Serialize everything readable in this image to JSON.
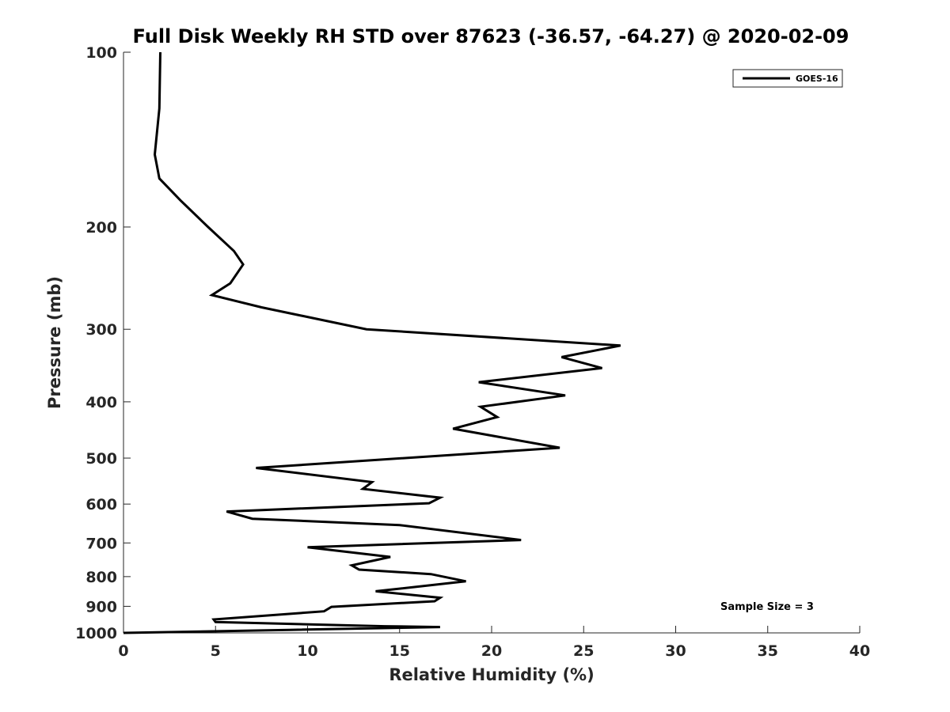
{
  "chart_data": {
    "type": "line",
    "title": "Full Disk Weekly RH STD over 87623 (-36.57, -64.27) @ 2020-02-09",
    "xlabel": "Relative Humidity (%)",
    "ylabel": "Pressure (mb)",
    "xlim": [
      0,
      40
    ],
    "ylim": [
      100,
      1000
    ],
    "yscale": "log",
    "xticks": [
      0,
      5,
      10,
      15,
      20,
      25,
      30,
      35,
      40
    ],
    "xtick_labels": [
      "0",
      "5",
      "10",
      "15",
      "20",
      "25",
      "30",
      "35",
      "40"
    ],
    "yticks": [
      100,
      200,
      300,
      400,
      500,
      600,
      700,
      800,
      900,
      1000
    ],
    "ytick_labels": [
      "100",
      "200",
      "300",
      "400",
      "500",
      "600",
      "700",
      "800",
      "900",
      "1000"
    ],
    "legend": {
      "position": "top-right",
      "entries": [
        "GOES-16"
      ]
    },
    "annotation": "Sample Size = 3",
    "series": [
      {
        "name": "GOES-16",
        "color": "#000000",
        "points": [
          [
            2.0,
            100
          ],
          [
            1.95,
            125
          ],
          [
            1.7,
            150
          ],
          [
            1.95,
            165
          ],
          [
            3.1,
            180
          ],
          [
            4.6,
            200
          ],
          [
            6.0,
            220
          ],
          [
            6.5,
            232
          ],
          [
            5.8,
            250
          ],
          [
            4.8,
            262
          ],
          [
            7.5,
            275
          ],
          [
            13.2,
            300
          ],
          [
            27.0,
            320
          ],
          [
            23.8,
            335
          ],
          [
            26.0,
            350
          ],
          [
            19.3,
            370
          ],
          [
            24.0,
            390
          ],
          [
            19.4,
            408
          ],
          [
            20.3,
            425
          ],
          [
            17.9,
            445
          ],
          [
            23.7,
            480
          ],
          [
            7.2,
            520
          ],
          [
            13.5,
            550
          ],
          [
            13.0,
            565
          ],
          [
            17.2,
            585
          ],
          [
            16.6,
            598
          ],
          [
            5.6,
            618
          ],
          [
            7.0,
            636
          ],
          [
            15.0,
            652
          ],
          [
            21.6,
            692
          ],
          [
            10.0,
            712
          ],
          [
            14.5,
            740
          ],
          [
            12.4,
            765
          ],
          [
            12.8,
            778
          ],
          [
            16.7,
            792
          ],
          [
            18.6,
            815
          ],
          [
            13.7,
            848
          ],
          [
            17.2,
            870
          ],
          [
            16.9,
            882
          ],
          [
            11.3,
            902
          ],
          [
            10.9,
            918
          ],
          [
            4.9,
            948
          ],
          [
            5.0,
            958
          ],
          [
            14.2,
            974
          ],
          [
            17.2,
            977
          ],
          [
            9.0,
            988
          ],
          [
            0,
            1000
          ]
        ]
      }
    ]
  }
}
